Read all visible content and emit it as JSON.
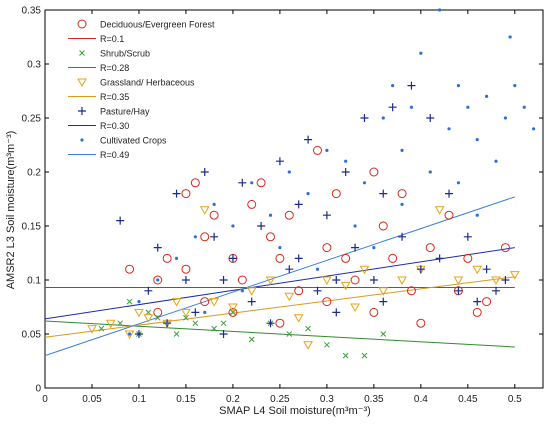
{
  "chart_data": {
    "type": "scatter",
    "xlabel": "SMAP L4 Soil moisture(m³m⁻³)",
    "ylabel": "AMSR2 L3 Soil moisture(m³m⁻³)",
    "xlim": [
      0,
      0.53
    ],
    "ylim": [
      0,
      0.35
    ],
    "xticks": [
      0,
      0.05,
      0.1,
      0.15,
      0.2,
      0.25,
      0.3,
      0.35,
      0.4,
      0.45,
      0.5
    ],
    "yticks": [
      0,
      0.05,
      0.1,
      0.15,
      0.2,
      0.25,
      0.3,
      0.35
    ],
    "xtick_labels": [
      "0",
      "0.05",
      "0.1",
      "0.15",
      "0.2",
      "0.25",
      "0.3",
      "0.35",
      "0.4",
      "0.45",
      "0.5"
    ],
    "ytick_labels": [
      "0",
      "0.05",
      "0.1",
      "0.15",
      "0.2",
      "0.25",
      "0.3",
      "0.35"
    ],
    "grid": false,
    "legend_position": "top-left",
    "series": [
      {
        "name": "Deciduous/Evergreen Forest",
        "marker": "circle",
        "color": "#d62a1c",
        "fit_label": "R=0.1",
        "fit_color": "#cc2b2b",
        "fit": [
          [
            0,
            0.093
          ],
          [
            0.5,
            0.093
          ]
        ],
        "points": [
          [
            0.09,
            0.11
          ],
          [
            0.12,
            0.1
          ],
          [
            0.13,
            0.12
          ],
          [
            0.15,
            0.18
          ],
          [
            0.15,
            0.11
          ],
          [
            0.16,
            0.19
          ],
          [
            0.17,
            0.14
          ],
          [
            0.18,
            0.16
          ],
          [
            0.2,
            0.12
          ],
          [
            0.21,
            0.1
          ],
          [
            0.22,
            0.17
          ],
          [
            0.23,
            0.19
          ],
          [
            0.24,
            0.14
          ],
          [
            0.25,
            0.12
          ],
          [
            0.26,
            0.16
          ],
          [
            0.27,
            0.09
          ],
          [
            0.29,
            0.22
          ],
          [
            0.3,
            0.13
          ],
          [
            0.31,
            0.18
          ],
          [
            0.32,
            0.12
          ],
          [
            0.33,
            0.1
          ],
          [
            0.35,
            0.2
          ],
          [
            0.36,
            0.15
          ],
          [
            0.37,
            0.12
          ],
          [
            0.38,
            0.18
          ],
          [
            0.39,
            0.09
          ],
          [
            0.41,
            0.13
          ],
          [
            0.43,
            0.16
          ],
          [
            0.45,
            0.12
          ],
          [
            0.46,
            0.07
          ],
          [
            0.47,
            0.08
          ],
          [
            0.49,
            0.13
          ],
          [
            0.2,
            0.07
          ],
          [
            0.25,
            0.06
          ],
          [
            0.3,
            0.08
          ],
          [
            0.35,
            0.07
          ],
          [
            0.4,
            0.06
          ],
          [
            0.44,
            0.09
          ],
          [
            0.12,
            0.07
          ],
          [
            0.17,
            0.08
          ]
        ]
      },
      {
        "name": "Shrub/Scrub",
        "marker": "x",
        "color": "#3aa03a",
        "fit_label": "R=0.28",
        "fit_color": "#2e8b2e",
        "fit": [
          [
            0,
            0.062
          ],
          [
            0.5,
            0.038
          ]
        ],
        "points": [
          [
            0.06,
            0.055
          ],
          [
            0.08,
            0.06
          ],
          [
            0.1,
            0.05
          ],
          [
            0.12,
            0.065
          ],
          [
            0.14,
            0.05
          ],
          [
            0.16,
            0.06
          ],
          [
            0.18,
            0.055
          ],
          [
            0.2,
            0.07
          ],
          [
            0.22,
            0.045
          ],
          [
            0.24,
            0.06
          ],
          [
            0.26,
            0.05
          ],
          [
            0.28,
            0.055
          ],
          [
            0.3,
            0.04
          ],
          [
            0.32,
            0.03
          ],
          [
            0.34,
            0.03
          ],
          [
            0.36,
            0.05
          ],
          [
            0.09,
            0.08
          ],
          [
            0.11,
            0.07
          ],
          [
            0.15,
            0.065
          ],
          [
            0.19,
            0.06
          ]
        ]
      },
      {
        "name": "Grassland/ Herbaceous",
        "marker": "triangle-down",
        "color": "#e8a317",
        "fit_label": "R=0.35",
        "fit_color": "#d99a1e",
        "fit": [
          [
            0,
            0.047
          ],
          [
            0.5,
            0.103
          ]
        ],
        "points": [
          [
            0.05,
            0.055
          ],
          [
            0.07,
            0.06
          ],
          [
            0.09,
            0.05
          ],
          [
            0.11,
            0.065
          ],
          [
            0.13,
            0.06
          ],
          [
            0.15,
            0.07
          ],
          [
            0.17,
            0.165
          ],
          [
            0.18,
            0.08
          ],
          [
            0.2,
            0.075
          ],
          [
            0.22,
            0.09
          ],
          [
            0.24,
            0.1
          ],
          [
            0.26,
            0.085
          ],
          [
            0.28,
            0.04
          ],
          [
            0.3,
            0.1
          ],
          [
            0.32,
            0.095
          ],
          [
            0.34,
            0.11
          ],
          [
            0.36,
            0.09
          ],
          [
            0.38,
            0.1
          ],
          [
            0.4,
            0.11
          ],
          [
            0.42,
            0.165
          ],
          [
            0.44,
            0.1
          ],
          [
            0.46,
            0.11
          ],
          [
            0.48,
            0.1
          ],
          [
            0.5,
            0.105
          ],
          [
            0.1,
            0.07
          ],
          [
            0.14,
            0.08
          ],
          [
            0.27,
            0.065
          ],
          [
            0.33,
            0.075
          ]
        ]
      },
      {
        "name": "Pasture/Hay",
        "marker": "plus",
        "color": "#1c2a8c",
        "fit_label": "R=0.30",
        "fit_color": "#1a2e9e",
        "fit": [
          [
            0,
            0.064
          ],
          [
            0.5,
            0.13
          ]
        ],
        "points": [
          [
            0.08,
            0.155
          ],
          [
            0.1,
            0.05
          ],
          [
            0.12,
            0.13
          ],
          [
            0.13,
            0.06
          ],
          [
            0.14,
            0.18
          ],
          [
            0.15,
            0.1
          ],
          [
            0.16,
            0.07
          ],
          [
            0.17,
            0.2
          ],
          [
            0.18,
            0.14
          ],
          [
            0.19,
            0.05
          ],
          [
            0.2,
            0.12
          ],
          [
            0.21,
            0.19
          ],
          [
            0.22,
            0.08
          ],
          [
            0.23,
            0.15
          ],
          [
            0.24,
            0.06
          ],
          [
            0.25,
            0.21
          ],
          [
            0.26,
            0.11
          ],
          [
            0.27,
            0.17
          ],
          [
            0.28,
            0.23
          ],
          [
            0.29,
            0.09
          ],
          [
            0.3,
            0.16
          ],
          [
            0.31,
            0.07
          ],
          [
            0.32,
            0.2
          ],
          [
            0.33,
            0.13
          ],
          [
            0.34,
            0.25
          ],
          [
            0.35,
            0.1
          ],
          [
            0.36,
            0.18
          ],
          [
            0.37,
            0.26
          ],
          [
            0.38,
            0.14
          ],
          [
            0.39,
            0.28
          ],
          [
            0.4,
            0.11
          ],
          [
            0.41,
            0.25
          ],
          [
            0.42,
            0.12
          ],
          [
            0.43,
            0.18
          ],
          [
            0.44,
            0.09
          ],
          [
            0.45,
            0.14
          ],
          [
            0.46,
            0.08
          ],
          [
            0.47,
            0.11
          ],
          [
            0.48,
            0.09
          ],
          [
            0.49,
            0.1
          ],
          [
            0.11,
            0.09
          ],
          [
            0.19,
            0.1
          ],
          [
            0.27,
            0.12
          ],
          [
            0.31,
            0.1
          ],
          [
            0.36,
            0.08
          ]
        ]
      },
      {
        "name": "Cultivated Crops",
        "marker": "dot",
        "color": "#2f6fd6",
        "fit_label": "R=0.49",
        "fit_color": "#3b82d9",
        "fit": [
          [
            0,
            0.03
          ],
          [
            0.5,
            0.177
          ]
        ],
        "points": [
          [
            0.1,
            0.08
          ],
          [
            0.12,
            0.1
          ],
          [
            0.14,
            0.12
          ],
          [
            0.16,
            0.14
          ],
          [
            0.18,
            0.17
          ],
          [
            0.2,
            0.15
          ],
          [
            0.22,
            0.19
          ],
          [
            0.24,
            0.16
          ],
          [
            0.26,
            0.2
          ],
          [
            0.28,
            0.18
          ],
          [
            0.3,
            0.22
          ],
          [
            0.32,
            0.21
          ],
          [
            0.34,
            0.19
          ],
          [
            0.36,
            0.25
          ],
          [
            0.37,
            0.28
          ],
          [
            0.38,
            0.22
          ],
          [
            0.39,
            0.26
          ],
          [
            0.4,
            0.31
          ],
          [
            0.41,
            0.2
          ],
          [
            0.42,
            0.35
          ],
          [
            0.43,
            0.24
          ],
          [
            0.44,
            0.28
          ],
          [
            0.45,
            0.26
          ],
          [
            0.46,
            0.23
          ],
          [
            0.47,
            0.27
          ],
          [
            0.48,
            0.21
          ],
          [
            0.49,
            0.25
          ],
          [
            0.5,
            0.28
          ],
          [
            0.51,
            0.26
          ],
          [
            0.52,
            0.24
          ],
          [
            0.495,
            0.325
          ],
          [
            0.33,
            0.15
          ],
          [
            0.35,
            0.13
          ],
          [
            0.29,
            0.11
          ],
          [
            0.25,
            0.13
          ],
          [
            0.21,
            0.09
          ],
          [
            0.17,
            0.07
          ],
          [
            0.13,
            0.06
          ],
          [
            0.09,
            0.05
          ],
          [
            0.44,
            0.19
          ],
          [
            0.46,
            0.16
          ],
          [
            0.38,
            0.17
          ]
        ]
      }
    ]
  }
}
